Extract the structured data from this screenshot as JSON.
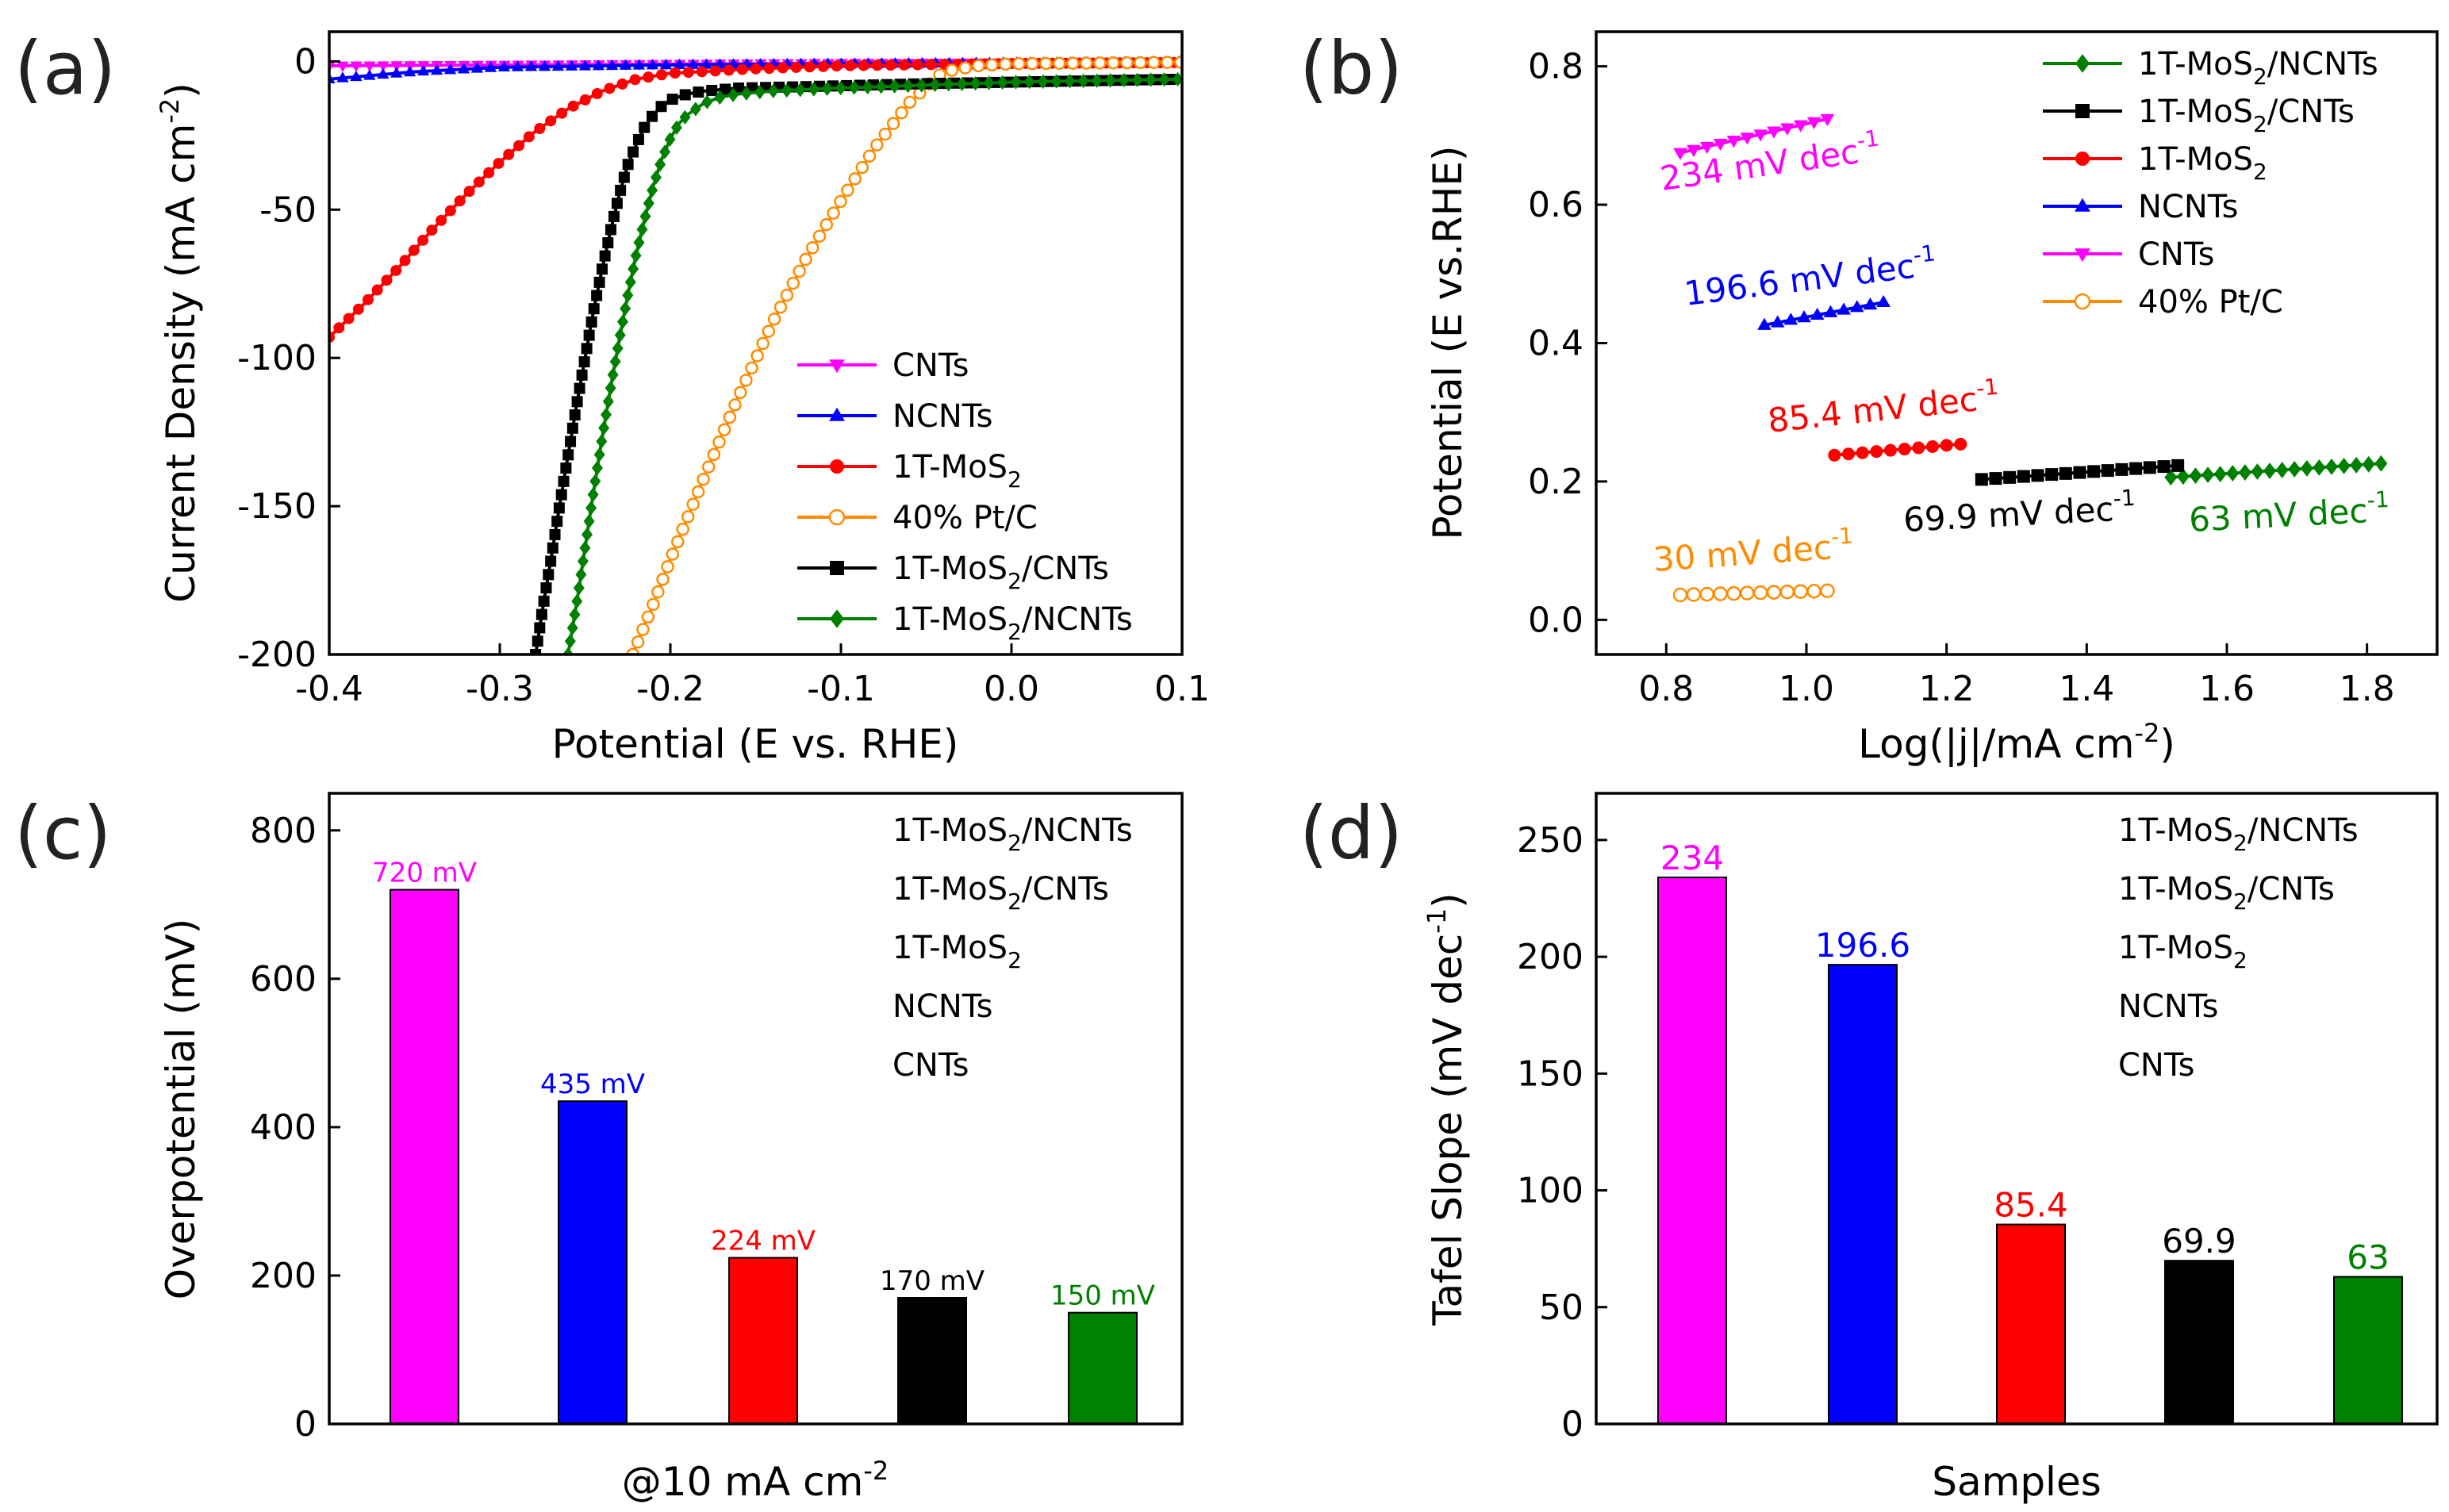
{
  "chart_data": [
    {
      "panel": "(a)",
      "type": "line",
      "xlabel": "Potential (E vs. RHE)",
      "ylabel": "Current Density (mA cm",
      "ylabel_sup": "-2",
      "ylabel_tail": ")",
      "xlim": [
        -0.4,
        0.1
      ],
      "ylim": [
        -200,
        10
      ],
      "xticks": [
        -0.4,
        -0.3,
        -0.2,
        -0.1,
        0.0,
        0.1
      ],
      "xtick_labels": [
        "-0.4",
        "-0.3",
        "-0.2",
        "-0.1",
        "0.0",
        "0.1"
      ],
      "yticks": [
        0,
        -50,
        -100,
        -150,
        -200
      ],
      "ytick_labels": [
        "0",
        "-50",
        "-100",
        "-150",
        "-200"
      ],
      "legend_position": "bottom-right",
      "series": [
        {
          "name": "CNTs",
          "label": "CNTs",
          "sub": "",
          "tail": "",
          "color": "#ff00ff",
          "marker": "triangle-down",
          "points": [
            [
              -0.4,
              -1.5
            ],
            [
              -0.3,
              -1.2
            ],
            [
              -0.2,
              -0.9
            ],
            [
              -0.1,
              -0.6
            ],
            [
              0.0,
              -0.4
            ],
            [
              0.1,
              -0.2
            ]
          ]
        },
        {
          "name": "NCNTs",
          "label": "NCNTs",
          "sub": "",
          "tail": "",
          "color": "#0000ff",
          "marker": "triangle-up",
          "points": [
            [
              -0.4,
              -6
            ],
            [
              -0.35,
              -3.5
            ],
            [
              -0.3,
              -2
            ],
            [
              -0.2,
              -1.2
            ],
            [
              -0.1,
              -0.8
            ],
            [
              0.0,
              -0.5
            ],
            [
              0.1,
              -0.3
            ]
          ]
        },
        {
          "name": "1T-MoS2",
          "label": "1T-MoS",
          "sub": "2",
          "tail": "",
          "color": "#ff0000",
          "marker": "circle",
          "points": [
            [
              -0.4,
              -93
            ],
            [
              -0.38,
              -82
            ],
            [
              -0.36,
              -70
            ],
            [
              -0.34,
              -57
            ],
            [
              -0.32,
              -45
            ],
            [
              -0.3,
              -34
            ],
            [
              -0.28,
              -24
            ],
            [
              -0.26,
              -16
            ],
            [
              -0.24,
              -10
            ],
            [
              -0.22,
              -6
            ],
            [
              -0.2,
              -4
            ],
            [
              -0.15,
              -2.5
            ],
            [
              -0.1,
              -1.5
            ],
            [
              0.0,
              -0.7
            ],
            [
              0.1,
              -0.4
            ]
          ]
        },
        {
          "name": "40% Pt/C",
          "label": "40% Pt/C",
          "sub": "",
          "tail": "",
          "color": "#ff8c00",
          "marker": "open-circle",
          "points": [
            [
              -0.222,
              -200
            ],
            [
              -0.21,
              -183
            ],
            [
              -0.2,
              -168
            ],
            [
              -0.18,
              -140
            ],
            [
              -0.16,
              -113
            ],
            [
              -0.14,
              -88
            ],
            [
              -0.12,
              -66
            ],
            [
              -0.1,
              -47
            ],
            [
              -0.08,
              -29
            ],
            [
              -0.06,
              -14
            ],
            [
              -0.045,
              -6
            ],
            [
              -0.04,
              -3.5
            ],
            [
              -0.02,
              -1.5
            ],
            [
              0.0,
              -0.8
            ],
            [
              0.1,
              -0.3
            ]
          ]
        },
        {
          "name": "1T-MoS2/CNTs",
          "label": "1T-MoS",
          "sub": "2",
          "tail": "/CNTs",
          "color": "#000000",
          "marker": "square",
          "points": [
            [
              -0.279,
              -200
            ],
            [
              -0.275,
              -185
            ],
            [
              -0.27,
              -168
            ],
            [
              -0.265,
              -150
            ],
            [
              -0.26,
              -133
            ],
            [
              -0.255,
              -116
            ],
            [
              -0.25,
              -100
            ],
            [
              -0.245,
              -84
            ],
            [
              -0.24,
              -70
            ],
            [
              -0.235,
              -57
            ],
            [
              -0.23,
              -45
            ],
            [
              -0.225,
              -35
            ],
            [
              -0.22,
              -28
            ],
            [
              -0.215,
              -22
            ],
            [
              -0.21,
              -18
            ],
            [
              -0.205,
              -15
            ],
            [
              -0.2,
              -13
            ],
            [
              -0.19,
              -11
            ],
            [
              -0.18,
              -10
            ],
            [
              -0.16,
              -9
            ],
            [
              -0.12,
              -8.5
            ],
            [
              -0.05,
              -7.5
            ],
            [
              0.0,
              -7
            ],
            [
              0.1,
              -6
            ]
          ]
        },
        {
          "name": "1T-MoS2/NCNTs",
          "label": "1T-MoS",
          "sub": "2",
          "tail": "/NCNTs",
          "color": "#008000",
          "marker": "diamond",
          "points": [
            [
              -0.26,
              -200
            ],
            [
              -0.255,
              -183
            ],
            [
              -0.25,
              -164
            ],
            [
              -0.245,
              -145
            ],
            [
              -0.24,
              -127
            ],
            [
              -0.235,
              -110
            ],
            [
              -0.23,
              -94
            ],
            [
              -0.225,
              -79
            ],
            [
              -0.22,
              -65
            ],
            [
              -0.215,
              -53
            ],
            [
              -0.21,
              -42
            ],
            [
              -0.205,
              -33
            ],
            [
              -0.2,
              -26
            ],
            [
              -0.195,
              -21
            ],
            [
              -0.19,
              -18
            ],
            [
              -0.18,
              -14
            ],
            [
              -0.17,
              -12
            ],
            [
              -0.16,
              -11
            ],
            [
              -0.14,
              -10
            ],
            [
              -0.1,
              -9
            ],
            [
              -0.05,
              -8
            ],
            [
              0.0,
              -7
            ],
            [
              0.1,
              -6
            ]
          ]
        }
      ]
    },
    {
      "panel": "(b)",
      "type": "line",
      "xlabel": "Log(|j|/mA cm",
      "xlabel_sup": "-2",
      "xlabel_tail": ")",
      "ylabel": "Potential (E vs.RHE)",
      "xlim": [
        0.7,
        1.9
      ],
      "ylim": [
        -0.05,
        0.85
      ],
      "xticks": [
        0.8,
        1.0,
        1.2,
        1.4,
        1.6,
        1.8
      ],
      "xtick_labels": [
        "0.8",
        "1.0",
        "1.2",
        "1.4",
        "1.6",
        "1.8"
      ],
      "yticks": [
        0.0,
        0.2,
        0.4,
        0.6,
        0.8
      ],
      "ytick_labels": [
        "0.0",
        "0.2",
        "0.4",
        "0.6",
        "0.8"
      ],
      "legend_position": "top-right",
      "series": [
        {
          "name": "1T-MoS2/NCNTs",
          "label": "1T-MoS",
          "sub": "2",
          "tail": "/NCNTs",
          "color": "#008000",
          "marker": "diamond",
          "x_range": [
            1.52,
            1.82
          ],
          "y_range": [
            0.206,
            0.226
          ],
          "n": 18,
          "annotation": "63 mV dec",
          "ann_sup": "-1"
        },
        {
          "name": "1T-MoS2/CNTs",
          "label": "1T-MoS",
          "sub": "2",
          "tail": "/CNTs",
          "color": "#000000",
          "marker": "square",
          "x_range": [
            1.25,
            1.53
          ],
          "y_range": [
            0.203,
            0.223
          ],
          "n": 15,
          "annotation": "69.9 mV dec",
          "ann_sup": "-1"
        },
        {
          "name": "1T-MoS2",
          "label": "1T-MoS",
          "sub": "2",
          "tail": "",
          "color": "#ff0000",
          "marker": "circle",
          "x_range": [
            1.04,
            1.22
          ],
          "y_range": [
            0.238,
            0.254
          ],
          "n": 10,
          "annotation": "85.4 mV dec",
          "ann_sup": "-1"
        },
        {
          "name": "NCNTs",
          "label": "NCNTs",
          "sub": "",
          "tail": "",
          "color": "#0000ff",
          "marker": "triangle-up",
          "x_range": [
            0.94,
            1.11
          ],
          "y_range": [
            0.426,
            0.459
          ],
          "n": 10,
          "annotation": "196.6 mV dec",
          "ann_sup": "-1"
        },
        {
          "name": "CNTs",
          "label": "CNTs",
          "sub": "",
          "tail": "",
          "color": "#ff00ff",
          "marker": "triangle-down",
          "x_range": [
            0.82,
            1.03
          ],
          "y_range": [
            0.675,
            0.724
          ],
          "n": 12,
          "annotation": "234 mV dec",
          "ann_sup": "-1"
        },
        {
          "name": "40% Pt/C",
          "label": "40% Pt/C",
          "sub": "",
          "tail": "",
          "color": "#ff8c00",
          "marker": "open-circle",
          "x_range": [
            0.82,
            1.03
          ],
          "y_range": [
            0.036,
            0.042
          ],
          "n": 12,
          "annotation": "30 mV dec",
          "ann_sup": "-1"
        }
      ]
    },
    {
      "panel": "(c)",
      "type": "bar",
      "xlabel": "@10 mA cm",
      "xlabel_sup": "-2",
      "ylabel": "Overpotential (mV)",
      "ylim": [
        0,
        850
      ],
      "yticks": [
        0,
        200,
        400,
        600,
        800
      ],
      "ytick_labels": [
        "0",
        "200",
        "400",
        "600",
        "800"
      ],
      "categories": [
        "CNTs",
        "NCNTs",
        "1T-MoS2",
        "1T-MoS2/CNTs",
        "1T-MoS2/NCNTs"
      ],
      "values": [
        720,
        435,
        224,
        170,
        150
      ],
      "value_labels": [
        "720 mV",
        "435 mV",
        "224 mV",
        "170 mV",
        "150 mV"
      ],
      "colors": [
        "#ff00ff",
        "#0000ff",
        "#ff0000",
        "#000000",
        "#008000"
      ],
      "legend_position": "top-right",
      "legend": [
        {
          "label": "1T-MoS",
          "sub": "2",
          "tail": "/NCNTs",
          "color": "#008000"
        },
        {
          "label": "1T-MoS",
          "sub": "2",
          "tail": "/CNTs",
          "color": "#000000"
        },
        {
          "label": "1T-MoS",
          "sub": "2",
          "tail": "",
          "color": "#ff0000"
        },
        {
          "label": "NCNTs",
          "sub": "",
          "tail": "",
          "color": "#0000ff"
        },
        {
          "label": "CNTs",
          "sub": "",
          "tail": "",
          "color": "#ff00ff"
        }
      ]
    },
    {
      "panel": "(d)",
      "type": "bar",
      "xlabel": "Samples",
      "ylabel": "Tafel Slope (mV dec",
      "ylabel_sup": "-1",
      "ylabel_tail": ")",
      "ylim": [
        0,
        270
      ],
      "yticks": [
        0,
        50,
        100,
        150,
        200,
        250
      ],
      "ytick_labels": [
        "0",
        "50",
        "100",
        "150",
        "200",
        "250"
      ],
      "categories": [
        "CNTs",
        "NCNTs",
        "1T-MoS2",
        "1T-MoS2/CNTs",
        "1T-MoS2/NCNTs"
      ],
      "values": [
        234,
        196.6,
        85.4,
        69.9,
        63
      ],
      "value_labels": [
        "234",
        "196.6",
        "85.4",
        "69.9",
        "63"
      ],
      "colors": [
        "#ff00ff",
        "#0000ff",
        "#ff0000",
        "#000000",
        "#008000"
      ],
      "legend_position": "top-right",
      "legend": [
        {
          "label": "1T-MoS",
          "sub": "2",
          "tail": "/NCNTs",
          "color": "#008000"
        },
        {
          "label": "1T-MoS",
          "sub": "2",
          "tail": "/CNTs",
          "color": "#000000"
        },
        {
          "label": "1T-MoS",
          "sub": "2",
          "tail": "",
          "color": "#ff0000"
        },
        {
          "label": "NCNTs",
          "sub": "",
          "tail": "",
          "color": "#0000ff"
        },
        {
          "label": "CNTs",
          "sub": "",
          "tail": "",
          "color": "#ff00ff"
        }
      ]
    }
  ]
}
